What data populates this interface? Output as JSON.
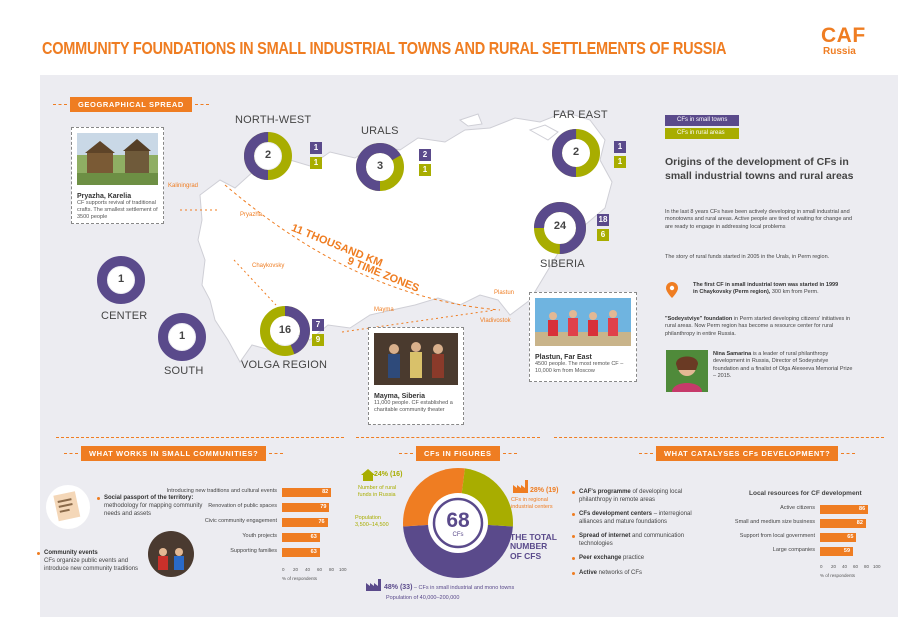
{
  "header": {
    "title": "COMMUNITY FOUNDATIONS IN SMALL INDUSTRIAL TOWNS AND RURAL SETTLEMENTS OF RUSSIA",
    "logo_main": "CAF",
    "logo_sub": "Russia"
  },
  "map": {
    "tag": "GEOGRAPHICAL SPREAD",
    "distance_label": "11 THOUSAND KM",
    "timezones_label": "9 TIME ZONES",
    "cities": [
      "Kaliningrad",
      "Pryazha",
      "Chaykovsky",
      "Mayma",
      "Vladivostok",
      "Plastun"
    ],
    "regions": [
      {
        "name": "NORTH-WEST",
        "total": "2",
        "towns": "1",
        "rural": "1"
      },
      {
        "name": "URALS",
        "total": "3",
        "towns": "2",
        "rural": "1"
      },
      {
        "name": "FAR EAST",
        "total": "2",
        "towns": "1",
        "rural": "1"
      },
      {
        "name": "SIBERIA",
        "total": "24",
        "towns": "18",
        "rural": "6"
      },
      {
        "name": "VOLGA REGION",
        "total": "16",
        "towns": "7",
        "rural": "9"
      },
      {
        "name": "CENTER",
        "total": "1"
      },
      {
        "name": "SOUTH",
        "total": "1"
      }
    ],
    "cards": [
      {
        "title": "Pryazha, Karelia",
        "text": "CF supports revival of traditional crafts. The smallest settlement of 3500 people"
      },
      {
        "title": "Mayma, Siberia",
        "text": "11,000 people. CF established a charitable community theater"
      },
      {
        "title": "Plastun, Far East",
        "text": "4500 people. The most remote CF – 10,000 km from Moscow"
      }
    ]
  },
  "legend": {
    "towns": "CFs in small towns",
    "rural": "CFs in rural areas",
    "color_towns": "#5a4a8b",
    "color_rural": "#a8ad00"
  },
  "origins": {
    "heading": "Origins of the development of CFs in small industrial towns and rural areas",
    "p1": "In the last 8 years CFs have been actively developing in small industrial and monotowns and rural areas. Active people are tired of waiting for change and are ready to engage in addressing local problems",
    "p2": "The story of rural funds started in 2005 in the Urals, in Perm region.",
    "p3a": "The first CF in small industrial town was started in 1999 in ",
    "p3b": "Chaykovsky (Perm region),",
    "p3c": " 300 km from Perm.",
    "p4a": "\"Sodeystviye\" foundation",
    "p4b": " in Perm started developing citizens' initiatives in rural areas. Now Perm region has become a resource center for rural philanthropy in entire Russia.",
    "p5a": "Nina Samarina",
    "p5b": " is a leader of rural philanthropy development in Russia, Director of Sodeystviye foundation and a finalist of Olga Alexeeva Memorial Prize – 2015."
  },
  "works": {
    "tag": "WHAT WORKS IN SMALL COMMUNITIES?",
    "item1_title": "Social passport of the territory:",
    "item1_text": "methodology for mapping community needs and assets",
    "item2_title": "Community events",
    "item2_text": "CFs organize public events and introduce new community traditions",
    "axis_label": "% of respondents",
    "ticks": [
      "0",
      "20",
      "40",
      "60",
      "80",
      "100"
    ]
  },
  "figures": {
    "tag": "CFs IN FIGURES",
    "total": "68",
    "total_unit": "CFs",
    "total_label_1": "THE TOTAL",
    "total_label_2": "NUMBER",
    "total_label_3": "OF CFS",
    "rural_pct": "24% (16)",
    "rural_text": "Number of rural funds in Russia",
    "rural_pop": "Population 3,500–14,500",
    "regional_pct": "28% (19)",
    "regional_text": "CFs in regional industrial centers",
    "small_pct": "48% (33)",
    "small_text": " – CFs in small industrial and mono towns",
    "small_pop": "Population of 40,000–200,000"
  },
  "catalyse": {
    "tag": "WHAT CATALYSES CFs DEVELOPMENT?",
    "items": [
      {
        "b": "CAF's programme",
        "t": " of developing local philanthropy in remote areas"
      },
      {
        "b": "CFs development centers",
        "t": " – interregional alliances and mature foundations"
      },
      {
        "b": "Spread of internet",
        "t": " and communication technologies"
      },
      {
        "b": "Peer exchange",
        "t": " practice"
      },
      {
        "b": "Active",
        "t": " networks of CFs"
      }
    ],
    "chart_title": "Local resources for CF development",
    "axis_label": "% of respondents",
    "ticks": [
      "0",
      "20",
      "40",
      "60",
      "80",
      "100"
    ]
  },
  "chart_data": [
    {
      "type": "bar",
      "title": "",
      "xlabel": "% of respondents",
      "xlim": [
        0,
        100
      ],
      "categories": [
        "Introducing new traditions and cultural events",
        "Renovation of public spaces",
        "Civic community engagement",
        "Youth projects",
        "Supporting families"
      ],
      "values": [
        82,
        79,
        76,
        63,
        63
      ]
    },
    {
      "type": "bar",
      "title": "Local resources for CF development",
      "xlabel": "% of respondents",
      "xlim": [
        0,
        100
      ],
      "categories": [
        "Active citizens",
        "Small and medium size business",
        "Support from local government",
        "Large companies"
      ],
      "values": [
        86,
        82,
        65,
        59
      ]
    },
    {
      "type": "pie",
      "title": "",
      "categories": [
        "CFs in small industrial and mono towns",
        "CFs in regional industrial centers",
        "Number of rural funds in Russia"
      ],
      "values": [
        48,
        28,
        24
      ]
    }
  ]
}
